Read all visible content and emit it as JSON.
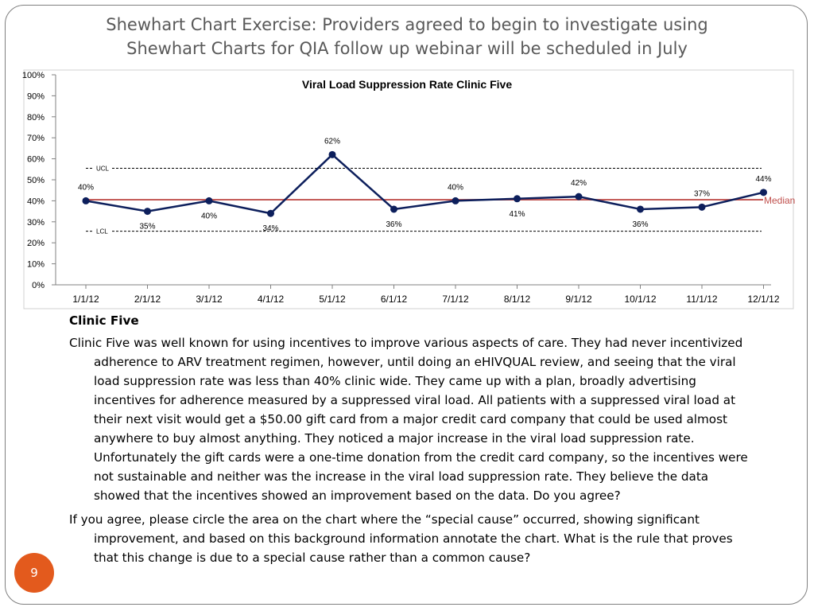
{
  "slide": {
    "title_line1": "Shewhart Chart Exercise: Providers agreed to begin to investigate using",
    "title_line2": "Shewhart Charts for QIA follow up webinar will be scheduled in July",
    "page_number": "9",
    "accent_color": "#e35a1d"
  },
  "chart_data": {
    "type": "line",
    "title": "Viral Load Suppression Rate Clinic Five",
    "categories": [
      "1/1/12",
      "2/1/12",
      "3/1/12",
      "4/1/12",
      "5/1/12",
      "6/1/12",
      "7/1/12",
      "8/1/12",
      "9/1/12",
      "10/1/12",
      "11/1/12",
      "12/1/12"
    ],
    "series": [
      {
        "values": [
          40,
          35,
          40,
          34,
          62,
          36,
          40,
          41,
          42,
          36,
          37,
          44
        ],
        "labels": [
          "40%",
          "35%",
          "40%",
          "34%",
          "62%",
          "36%",
          "40%",
          "41%",
          "42%",
          "36%",
          "37%",
          "44%"
        ],
        "label_position": [
          "above",
          "below",
          "below",
          "below",
          "above",
          "below",
          "above",
          "below",
          "above",
          "below",
          "above",
          "above"
        ],
        "color": "#0d1f5c"
      }
    ],
    "reference_lines": [
      {
        "name": "UCL",
        "value": 55.5,
        "style": "dashed",
        "color": "#000000"
      },
      {
        "name": "LCL",
        "value": 25.5,
        "style": "dashed",
        "color": "#000000"
      },
      {
        "name": "Median",
        "value": 40.5,
        "style": "solid",
        "color": "#c0504d"
      }
    ],
    "ylim": [
      0,
      100
    ],
    "y_ticks": [
      0,
      10,
      20,
      30,
      40,
      50,
      60,
      70,
      80,
      90,
      100
    ],
    "y_tick_labels": [
      "0%",
      "10%",
      "20%",
      "30%",
      "40%",
      "50%",
      "60%",
      "70%",
      "80%",
      "90%",
      "100%"
    ],
    "grid": false
  },
  "body": {
    "heading": "Clinic Five",
    "paragraph1": "Clinic Five was well known for using incentives to improve various aspects of care.  They had never incentivized adherence to ARV treatment regimen, however, until doing an eHIVQUAL review, and seeing that the viral load suppression rate was less than 40% clinic wide.  They came up with a plan, broadly advertising incentives for adherence measured by a suppressed viral load.  All patients with a suppressed viral load at their next visit would get a $50.00 gift card from a major credit card company that could be used almost anywhere to buy almost anything.  They noticed a major increase in the viral load suppression rate.  Unfortunately the gift cards were a one-time donation from the credit card company, so the incentives were not sustainable and neither was the increase in the viral load suppression rate.  They believe the data showed that the incentives showed an improvement based on the data.  Do you agree?",
    "paragraph2": "If you agree, please circle the area on the chart where the “special cause” occurred, showing significant improvement, and based on this background information annotate the chart.  What is the rule that proves that this change is due to a special cause rather than a common cause?"
  }
}
